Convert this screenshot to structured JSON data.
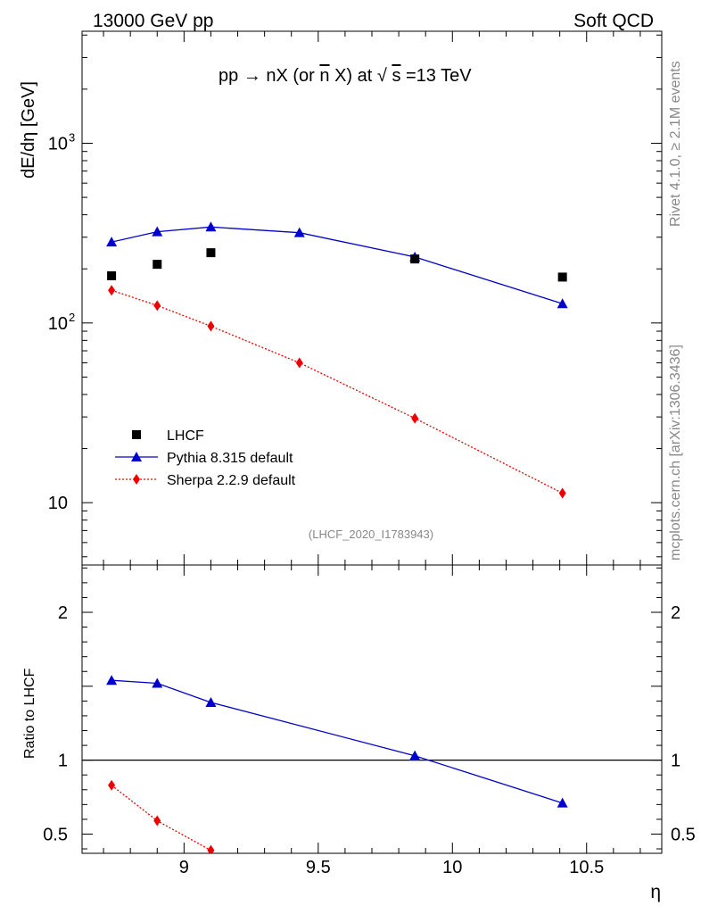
{
  "header": {
    "left": "13000 GeV pp",
    "right": "Soft QCD"
  },
  "process_title": {
    "pre": "pp ",
    "arrow": "→",
    "main": " nX (or ",
    "nbar": "n",
    "mid": "X) at ",
    "sqrt": "√",
    "s": "s",
    "post": "=13 TeV"
  },
  "side_labels": {
    "rivet": "Rivet 4.1.0, ≥ 2.1M events",
    "mcplots": "mcplots.cern.ch [arXiv:1306.3436]"
  },
  "analysis_id": "(LHCF_2020_I1783943)",
  "colors": {
    "data": "#000000",
    "pythia": "#0000cc",
    "sherpa": "#ee0000",
    "side_text": "#888888"
  },
  "chart_data": [
    {
      "type": "scatter",
      "panel": "main",
      "ylabel": "dE/dη [GeV]",
      "yscale": "log",
      "xlim": [
        8.62,
        10.78
      ],
      "ylim": [
        4.5,
        4200
      ],
      "yticks": [
        10,
        100,
        1000
      ],
      "ytick_labels": [
        "10",
        "10",
        "10"
      ],
      "ytick_exponents": [
        "",
        "2",
        "3"
      ],
      "series": [
        {
          "name": "LHCF",
          "marker": "square",
          "x": [
            8.73,
            8.9,
            9.1,
            9.86,
            10.41
          ],
          "y": [
            183,
            212,
            246,
            227,
            180
          ]
        },
        {
          "name": "Pythia 8.315 default",
          "marker": "triangle",
          "line": "solid",
          "x": [
            8.73,
            8.9,
            9.1,
            9.43,
            9.86,
            10.41
          ],
          "y": [
            282,
            322,
            342,
            318,
            233,
            128
          ]
        },
        {
          "name": "Sherpa 2.2.9 default",
          "marker": "diamond",
          "line": "dotted",
          "x": [
            8.73,
            8.9,
            9.1,
            9.43,
            9.86,
            10.41
          ],
          "y": [
            152,
            125,
            96,
            60,
            29.5,
            11.3
          ]
        }
      ],
      "legend": [
        "LHCF",
        "Pythia 8.315 default",
        "Sherpa 2.2.9 default"
      ],
      "legend_position": "lower-left"
    },
    {
      "type": "line",
      "panel": "ratio",
      "ylabel": "Ratio to LHCF",
      "xlabel": "η",
      "xlim": [
        8.62,
        10.78
      ],
      "ylim": [
        0.37,
        2.32
      ],
      "yticks": [
        0.5,
        1,
        2
      ],
      "ytick_labels": [
        "0.5",
        "1",
        "2"
      ],
      "xticks": [
        9,
        9.5,
        10,
        10.5
      ],
      "xtick_labels": [
        "9",
        "9.5",
        "10",
        "10.5"
      ],
      "reference_line": 1,
      "series": [
        {
          "name": "Pythia 8.315 default",
          "marker": "triangle",
          "line": "solid",
          "x": [
            8.73,
            8.9,
            9.1,
            9.86,
            10.41
          ],
          "y": [
            1.54,
            1.52,
            1.39,
            1.03,
            0.71
          ]
        },
        {
          "name": "Sherpa 2.2.9 default",
          "marker": "diamond",
          "line": "dotted",
          "x": [
            8.73,
            8.9,
            9.1
          ],
          "y": [
            0.83,
            0.59,
            0.39
          ]
        }
      ]
    }
  ]
}
